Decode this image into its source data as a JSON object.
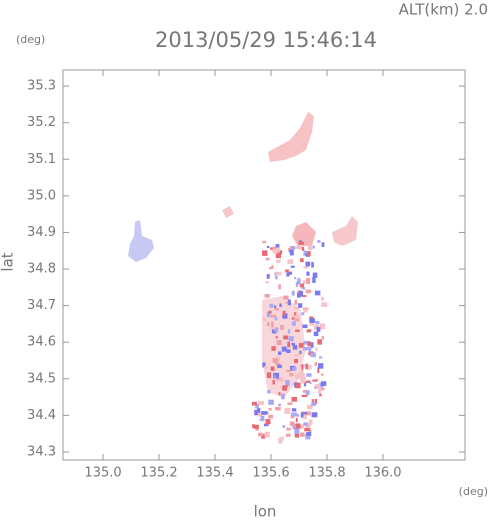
{
  "chart_data": {
    "type": "map",
    "title": "2013/05/29 15:46:14",
    "annotation": "ALT(km) 2.0",
    "xlabel": "lon",
    "ylabel": "lat",
    "xunit": "(deg)",
    "yunit": "(deg)",
    "xlim": [
      134.857,
      136.293
    ],
    "ylim": [
      34.278,
      35.344
    ],
    "xticks": [
      {
        "value": 135,
        "label": "135.0"
      },
      135.2,
      135.4,
      135.6,
      135.8,
      {
        "value": 136,
        "label": "136.0"
      }
    ],
    "yticks": [
      34.3,
      34.4,
      34.5,
      34.6,
      34.7,
      34.8,
      34.9,
      {
        "value": 35,
        "label": "35.0"
      },
      35.1,
      35.2,
      35.3
    ]
  }
}
